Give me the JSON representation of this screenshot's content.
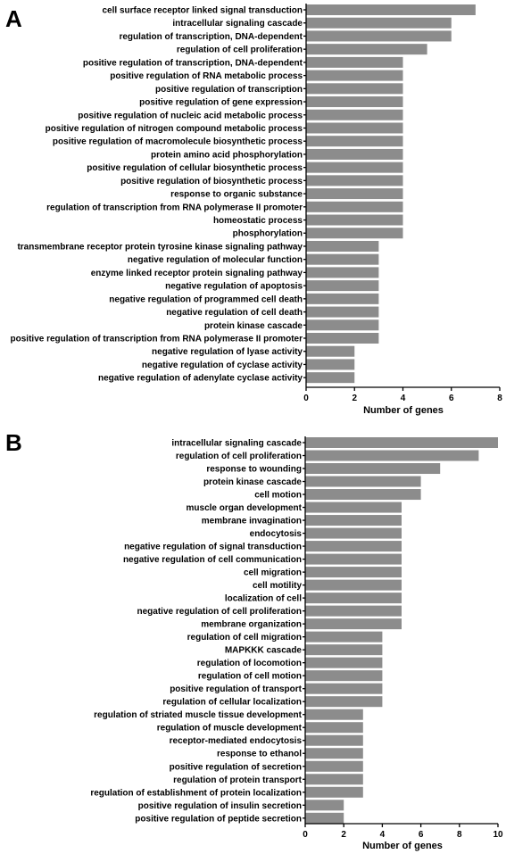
{
  "chart_data": [
    {
      "type": "bar",
      "orientation": "horizontal",
      "panel": "A",
      "xlabel": "Number of genes",
      "xlim": [
        0,
        8
      ],
      "xticks": [
        0,
        2,
        4,
        6,
        8
      ],
      "categories": [
        "cell surface receptor linked signal transduction",
        "intracellular signaling cascade",
        "regulation of transcription, DNA-dependent",
        "regulation of cell proliferation",
        "positive regulation of transcription, DNA-dependent",
        "positive regulation of RNA metabolic process",
        "positive regulation of transcription",
        "positive regulation of gene expression",
        "positive regulation of nucleic acid metabolic process",
        "positive regulation of nitrogen compound metabolic process",
        "positive regulation of macromolecule biosynthetic process",
        "protein amino acid phosphorylation",
        "positive regulation of cellular biosynthetic process",
        "positive regulation of biosynthetic process",
        "response to organic substance",
        "regulation of transcription from RNA polymerase II promoter",
        "homeostatic process",
        "phosphorylation",
        "transmembrane receptor protein tyrosine kinase signaling pathway",
        "negative regulation of molecular function",
        "enzyme linked receptor protein signaling pathway",
        "negative regulation of apoptosis",
        "negative regulation of programmed cell death",
        "negative regulation of cell death",
        "protein kinase cascade",
        "positive regulation of transcription from RNA polymerase II promoter",
        "negative regulation of lyase activity",
        "negative regulation of cyclase activity",
        "negative regulation of adenylate cyclase activity"
      ],
      "values": [
        7,
        6,
        6,
        5,
        4,
        4,
        4,
        4,
        4,
        4,
        4,
        4,
        4,
        4,
        4,
        4,
        4,
        4,
        3,
        3,
        3,
        3,
        3,
        3,
        3,
        3,
        2,
        2,
        2
      ],
      "bar_color": "#8c8c8c"
    },
    {
      "type": "bar",
      "orientation": "horizontal",
      "panel": "B",
      "xlabel": "Number of genes",
      "xlim": [
        0,
        10
      ],
      "xticks": [
        0,
        2,
        4,
        6,
        8,
        10
      ],
      "categories": [
        "intracellular signaling cascade",
        "regulation of cell proliferation",
        "response to wounding",
        "protein kinase cascade",
        "cell motion",
        "muscle organ development",
        "membrane invagination",
        "endocytosis",
        "negative regulation of signal transduction",
        "negative regulation of cell communication",
        "cell migration",
        "cell motility",
        "localization of cell",
        "negative regulation of cell proliferation",
        "membrane organization",
        "regulation of cell migration",
        "MAPKKK cascade",
        "regulation of locomotion",
        "regulation of cell motion",
        "positive regulation of transport",
        "regulation of cellular localization",
        "regulation of striated muscle tissue development",
        "regulation of muscle development",
        "receptor-mediated endocytosis",
        "response to ethanol",
        "positive regulation of secretion",
        "regulation of protein transport",
        "regulation of establishment of protein localization",
        "positive regulation of insulin secretion",
        "positive regulation of peptide secretion"
      ],
      "values": [
        10,
        9,
        7,
        6,
        6,
        5,
        5,
        5,
        5,
        5,
        5,
        5,
        5,
        5,
        5,
        4,
        4,
        4,
        4,
        4,
        4,
        3,
        3,
        3,
        3,
        3,
        3,
        3,
        2,
        2
      ],
      "bar_color": "#8c8c8c"
    }
  ]
}
